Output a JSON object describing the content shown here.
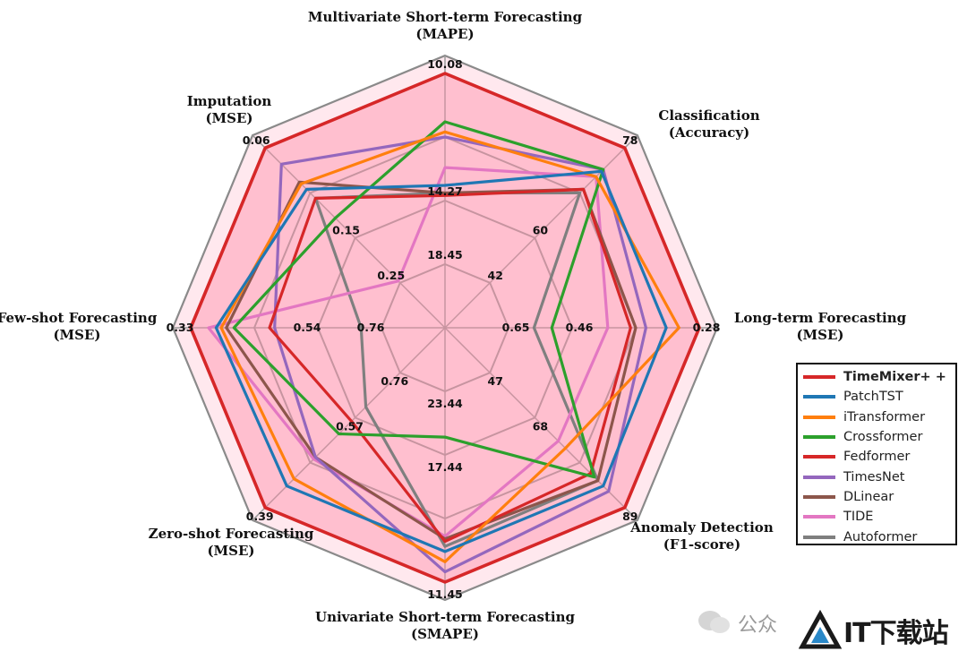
{
  "chart_data": {
    "type": "radar",
    "axes": [
      {
        "title": "Multivariate Short-term Forecasting",
        "metric": "(MAPE)",
        "ticks": [
          "18.45",
          "14.27",
          "10.08"
        ]
      },
      {
        "title": "Classification",
        "metric": "(Accuracy)",
        "ticks": [
          "42",
          "60",
          "78"
        ]
      },
      {
        "title": "Long-term Forecasting",
        "metric": "(MSE)",
        "ticks": [
          "0.65",
          "0.46",
          "0.28"
        ]
      },
      {
        "title": "Anomaly Detection",
        "metric": "(F1-score)",
        "ticks": [
          "47",
          "68",
          "89"
        ]
      },
      {
        "title": "Univariate Short-term Forecasting",
        "metric": "(SMAPE)",
        "ticks": [
          "23.44",
          "17.44",
          "11.45"
        ]
      },
      {
        "title": "Zero-shot Forecasting",
        "metric": "(MSE)",
        "ticks": [
          "0.76",
          "0.57",
          "0.39"
        ]
      },
      {
        "title": "Few-shot Forecasting",
        "metric": "(MSE)",
        "ticks": [
          "0.76",
          "0.54",
          "0.33"
        ]
      },
      {
        "title": "Imputation",
        "metric": "(MSE)",
        "ticks": [
          "0.25",
          "0.15",
          "0.06"
        ]
      }
    ],
    "score_scale": {
      "center": 0,
      "rings": [
        0.25,
        0.5,
        0.75,
        1.0
      ]
    },
    "series": [
      {
        "name": "TimeMixer+ +",
        "color": "#d62728",
        "fill": "#ff8fa8",
        "scores": [
          1.0,
          1.0,
          1.0,
          1.0,
          1.0,
          1.0,
          1.0,
          1.0
        ]
      },
      {
        "name": "PatchTST",
        "color": "#1f77b4",
        "scores": [
          0.56,
          0.87,
          0.87,
          0.88,
          0.88,
          0.88,
          0.9,
          0.77
        ]
      },
      {
        "name": "iTransformer",
        "color": "#ff7f0e",
        "scores": [
          0.77,
          0.84,
          0.92,
          0.67,
          0.92,
          0.84,
          0.88,
          0.8
        ]
      },
      {
        "name": "Crossformer",
        "color": "#2ca02c",
        "scores": [
          0.81,
          0.88,
          0.42,
          0.83,
          0.43,
          0.59,
          0.83,
          0.61
        ]
      },
      {
        "name": "Fedformer",
        "color": "#d62728",
        "scores": [
          0.52,
          0.77,
          0.73,
          0.81,
          0.84,
          0.52,
          0.69,
          0.72
        ]
      },
      {
        "name": "TimesNet",
        "color": "#9467bd",
        "scores": [
          0.75,
          0.88,
          0.79,
          0.91,
          0.96,
          0.72,
          0.67,
          0.91
        ]
      },
      {
        "name": "DLinear",
        "color": "#8c564b",
        "scores": [
          0.53,
          0.77,
          0.75,
          0.85,
          0.83,
          0.72,
          0.86,
          0.81
        ]
      },
      {
        "name": "TIDE",
        "color": "#e377c2",
        "scores": [
          0.63,
          0.84,
          0.64,
          0.63,
          0.82,
          0.73,
          0.93,
          0.26
        ]
      },
      {
        "name": "Autoformer",
        "color": "#7f7f7f",
        "scores": [
          0.53,
          0.75,
          0.35,
          0.85,
          0.86,
          0.44,
          0.33,
          0.72
        ]
      }
    ],
    "legend_position": "lower-right",
    "grid": true
  },
  "watermark": {
    "prefix": "公众",
    "brand": "IT下载站"
  }
}
